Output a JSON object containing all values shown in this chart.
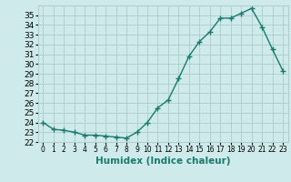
{
  "x": [
    0,
    1,
    2,
    3,
    4,
    5,
    6,
    7,
    8,
    9,
    10,
    11,
    12,
    13,
    14,
    15,
    16,
    17,
    18,
    19,
    20,
    21,
    22,
    23
  ],
  "y": [
    24.0,
    23.3,
    23.2,
    23.0,
    22.7,
    22.7,
    22.6,
    22.5,
    22.4,
    23.0,
    24.0,
    25.5,
    26.3,
    28.5,
    30.8,
    32.3,
    33.3,
    34.7,
    34.7,
    35.2,
    35.7,
    33.8,
    31.5,
    29.3
  ],
  "line_color": "#1a7a6e",
  "marker": "+",
  "marker_size": 4,
  "bg_color": "#ceeaea",
  "grid_color": "#b0d0d0",
  "xlabel": "Humidex (Indice chaleur)",
  "ylim": [
    22,
    36
  ],
  "xlim": [
    -0.5,
    23.5
  ],
  "yticks": [
    22,
    23,
    24,
    25,
    26,
    27,
    28,
    29,
    30,
    31,
    32,
    33,
    34,
    35
  ],
  "xticks": [
    0,
    1,
    2,
    3,
    4,
    5,
    6,
    7,
    8,
    9,
    10,
    11,
    12,
    13,
    14,
    15,
    16,
    17,
    18,
    19,
    20,
    21,
    22,
    23
  ],
  "ytick_label_size": 6.5,
  "xtick_label_size": 5.5,
  "xlabel_size": 7.5
}
